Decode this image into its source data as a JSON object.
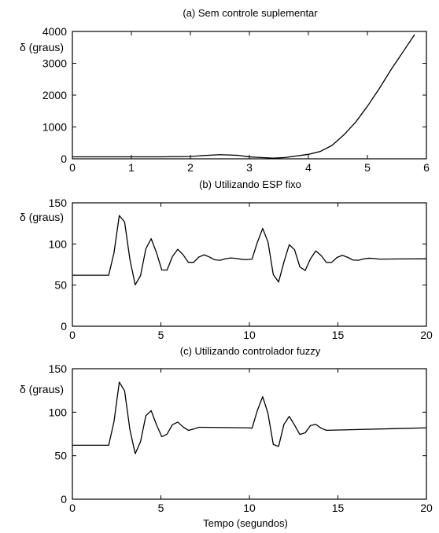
{
  "chart_data": [
    {
      "type": "line",
      "title": "(a) Sem controle suplementar",
      "ylabel": "δ (graus)",
      "xlabel": "",
      "xlim": [
        0,
        6
      ],
      "ylim": [
        0,
        4000
      ],
      "xticks": [
        "0",
        "1",
        "2",
        "3",
        "4",
        "5",
        "6"
      ],
      "yticks": [
        "0",
        "1000",
        "2000",
        "3000",
        "4000"
      ],
      "series": [
        {
          "x": [
            0,
            0.5,
            1,
            1.5,
            2,
            2.2,
            2.5,
            2.8,
            3.0,
            3.2,
            3.4,
            3.6,
            3.8,
            4.0,
            4.2,
            4.4,
            4.6,
            4.8,
            5.0,
            5.2,
            5.4,
            5.6,
            5.8
          ],
          "y": [
            62,
            62,
            62,
            62,
            70,
            100,
            130,
            110,
            60,
            40,
            20,
            40,
            90,
            140,
            230,
            420,
            750,
            1150,
            1650,
            2200,
            2800,
            3350,
            3900
          ]
        }
      ],
      "grid": false
    },
    {
      "type": "line",
      "title": "(b) Utilizando ESP fixo",
      "ylabel": "δ (graus)",
      "xlabel": "",
      "xlim": [
        0,
        20
      ],
      "ylim": [
        0,
        150
      ],
      "xticks": [
        "0",
        "5",
        "10",
        "15",
        "20"
      ],
      "yticks": [
        "0",
        "50",
        "100",
        "150"
      ],
      "series": [
        {
          "x": [
            0,
            2,
            2.05,
            2.35,
            2.65,
            2.95,
            3.25,
            3.55,
            3.85,
            4.15,
            4.45,
            4.75,
            5.05,
            5.35,
            5.65,
            5.95,
            6.25,
            6.55,
            6.85,
            7.15,
            7.45,
            7.75,
            8.05,
            8.35,
            8.65,
            8.95,
            9.25,
            9.55,
            9.85,
            10.15,
            10.45,
            10.75,
            11.05,
            11.35,
            11.65,
            11.95,
            12.25,
            12.55,
            12.85,
            13.15,
            13.45,
            13.75,
            14.05,
            14.35,
            14.65,
            14.95,
            15.25,
            15.55,
            15.85,
            16.15,
            16.45,
            16.75,
            17.05,
            17.35,
            20
          ],
          "y": [
            62,
            62,
            62,
            89.1,
            134.6,
            126.7,
            81.1,
            50.3,
            61.5,
            94.1,
            106.4,
            89.6,
            68.4,
            68.3,
            84.7,
            93.5,
            87.0,
            77.7,
            77.7,
            84.2,
            86.8,
            84.0,
            80.7,
            80.1,
            82.0,
            83.0,
            82.4,
            81.4,
            81.0,
            81.6,
            102.0,
            118.9,
            102.4,
            62.7,
            53.8,
            77.9,
            99.1,
            93.1,
            72.2,
            67.7,
            81.9,
            91.6,
            86.0,
            77.5,
            77.7,
            83.6,
            86.2,
            83.7,
            80.5,
            80.1,
            81.8,
            82.7,
            82.3,
            81.6,
            82
          ]
        }
      ],
      "grid": false
    },
    {
      "type": "line",
      "title": "(c) Utilizando controlador fuzzy",
      "ylabel": "δ (graus)",
      "xlabel": "Tempo (segundos)",
      "xlim": [
        0,
        20
      ],
      "ylim": [
        0,
        150
      ],
      "xticks": [
        "0",
        "5",
        "10",
        "15",
        "20"
      ],
      "yticks": [
        "0",
        "50",
        "100",
        "150"
      ],
      "series": [
        {
          "x": [
            0,
            2,
            2.05,
            2.35,
            2.65,
            2.95,
            3.25,
            3.55,
            3.85,
            4.15,
            4.45,
            4.75,
            5.05,
            5.35,
            5.65,
            5.95,
            6.25,
            6.55,
            6.85,
            7.15,
            10.0,
            10.15,
            10.45,
            10.75,
            11.05,
            11.35,
            11.65,
            11.95,
            12.25,
            12.55,
            12.85,
            13.15,
            13.45,
            13.75,
            14.05,
            14.35,
            20
          ],
          "y": [
            62,
            62,
            62,
            89.1,
            134.6,
            124.5,
            79.8,
            52.3,
            66.2,
            95.9,
            101.8,
            85.6,
            71.8,
            74.8,
            85.7,
            88.6,
            83.2,
            79.1,
            80.7,
            82.7,
            82.0,
            81.6,
            102.0,
            117.9,
            98.4,
            62.9,
            60.7,
            85.9,
            95.2,
            85.2,
            74.4,
            76.3,
            84.6,
            86.1,
            81.6,
            79.2,
            82
          ]
        }
      ],
      "grid": false
    }
  ]
}
